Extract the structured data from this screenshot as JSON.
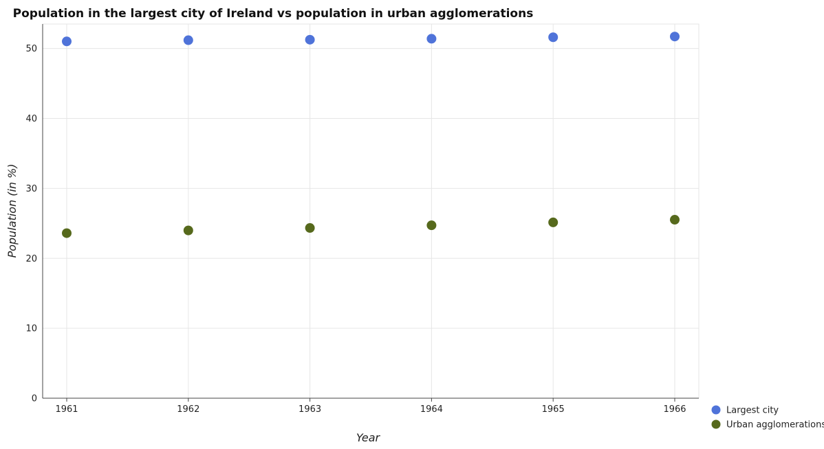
{
  "chart_data": {
    "type": "scatter",
    "title": "Population in the largest city of Ireland vs population in urban agglomerations",
    "xlabel": "Year",
    "ylabel": "Population (in %)",
    "categories": [
      "1961",
      "1962",
      "1963",
      "1964",
      "1965",
      "1966"
    ],
    "ylim": [
      0,
      53.5
    ],
    "yticks": [
      0,
      10,
      20,
      30,
      40,
      50
    ],
    "grid": true,
    "legend_position": "bottom-right",
    "series": [
      {
        "name": "Largest city",
        "color": "#4f73d9",
        "values": [
          51.02,
          51.19,
          51.26,
          51.4,
          51.61,
          51.71
        ]
      },
      {
        "name": "Urban agglomerations",
        "color": "#56691c",
        "values": [
          23.6,
          23.99,
          24.34,
          24.72,
          25.14,
          25.52
        ]
      }
    ]
  }
}
